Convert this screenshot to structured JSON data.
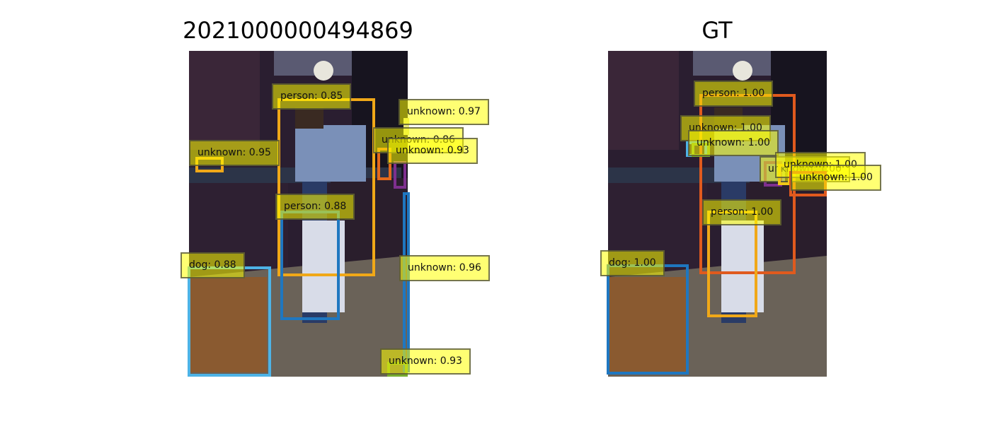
{
  "panels": [
    {
      "title": "2021000000494869",
      "detections": [
        {
          "label": "person: 0.85",
          "color": "#f0a818"
        },
        {
          "label": "unknown: 0.97",
          "color": "#e8e87a"
        },
        {
          "label": "unknown: 0.86",
          "color": "#e46a1c"
        },
        {
          "label": "unknown: 0.93",
          "color": "#7e2f8e"
        },
        {
          "label": "unknown: 0.95",
          "color": "#f0a818"
        },
        {
          "label": "person: 0.88",
          "color": "#1f77c0"
        },
        {
          "label": "dog: 0.88",
          "color": "#4db3e6"
        },
        {
          "label": "unknown: 0.96",
          "color": "#1f77c0"
        },
        {
          "label": "unknown: 0.93",
          "color": "#77ac30"
        }
      ]
    },
    {
      "title": "GT",
      "detections": [
        {
          "label": "person: 1.00",
          "color": "#e05a1e"
        },
        {
          "label": "unknown: 1.00",
          "color": "#4db3e6"
        },
        {
          "label": "unknown: 1.00",
          "color": "#77ac30"
        },
        {
          "label": "unknown: 1.00",
          "color": "#7e2f8e"
        },
        {
          "label": "unknown: 1.00",
          "color": "#f0c818"
        },
        {
          "label": "unknown: 1.00",
          "color": "#e05a1e"
        },
        {
          "label": "person: 1.00",
          "color": "#f0a818"
        },
        {
          "label": "dog: 1.00",
          "color": "#1f77c0"
        }
      ]
    }
  ]
}
